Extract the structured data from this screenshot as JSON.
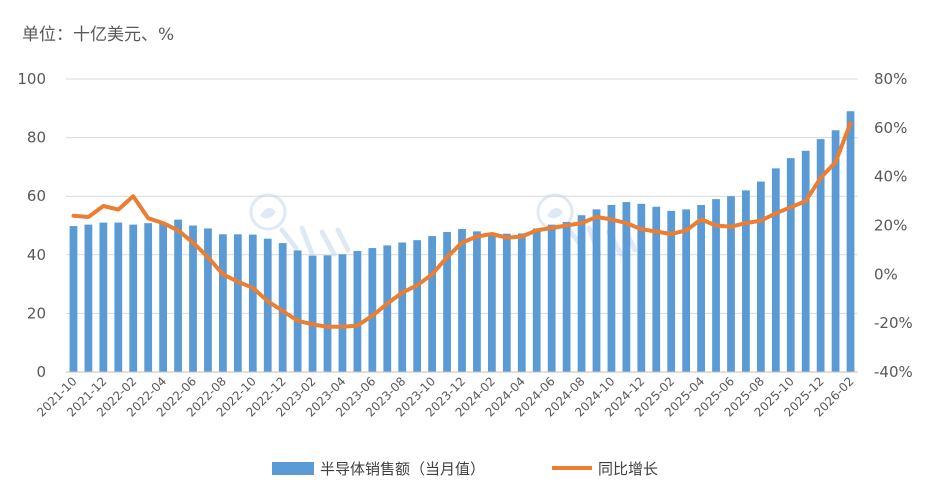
{
  "unit_label": "单位：十亿美元、%",
  "colors": {
    "bar": "#5b9bd5",
    "line": "#ed7d31",
    "grid": "#d9d9d9",
    "watermark": "#c5d8ee"
  },
  "watermark_icon": "stylized-logo-watermark",
  "chart_data": {
    "type": "bar",
    "categories": [
      "2021-10",
      "2021-11",
      "2021-12",
      "2022-01",
      "2022-02",
      "2022-03",
      "2022-04",
      "2022-05",
      "2022-06",
      "2022-07",
      "2022-08",
      "2022-09",
      "2022-10",
      "2022-11",
      "2022-12",
      "2023-01",
      "2023-02",
      "2023-03",
      "2023-04",
      "2023-05",
      "2023-06",
      "2023-07",
      "2023-08",
      "2023-09",
      "2023-10",
      "2023-11",
      "2023-12",
      "2024-01",
      "2024-02",
      "2024-03",
      "2024-04",
      "2024-05",
      "2024-06",
      "2024-07",
      "2024-08",
      "2024-09",
      "2024-10",
      "2024-11",
      "2024-12",
      "2025-01",
      "2025-02",
      "2025-03",
      "2025-04",
      "2025-05",
      "2025-06",
      "2025-07",
      "2025-08",
      "2025-09",
      "2025-10",
      "2025-11",
      "2025-12",
      "2026-01",
      "2026-02"
    ],
    "tick_labels": [
      "2021-10",
      "2021-12",
      "2022-02",
      "2022-04",
      "2022-06",
      "2022-08",
      "2022-10",
      "2022-12",
      "2023-02",
      "2023-04",
      "2023-06",
      "2023-08",
      "2023-10",
      "2023-12",
      "2024-02",
      "2024-04",
      "2024-06",
      "2024-08",
      "2024-10",
      "2024-12",
      "2025-02",
      "2025-04",
      "2025-06",
      "2025-08",
      "2025-10",
      "2025-12",
      "2026-02"
    ],
    "series": [
      {
        "name": "半导体销售额（当月值）",
        "type": "bar",
        "axis": "left",
        "values": [
          49.8,
          50.3,
          51.0,
          51.0,
          50.3,
          50.8,
          50.8,
          52.0,
          50.0,
          49.0,
          47.0,
          47.0,
          46.9,
          45.5,
          44.0,
          41.5,
          39.7,
          39.8,
          40.2,
          41.3,
          42.3,
          43.2,
          44.2,
          45.0,
          46.4,
          47.8,
          48.8,
          48.0,
          47.2,
          47.2,
          47.3,
          49.0,
          50.3,
          51.2,
          53.5,
          55.5,
          57.0,
          58.0,
          57.4,
          56.4,
          55.0,
          55.5,
          57.0,
          59.0,
          60.0,
          62.0,
          65.0,
          69.5,
          73.0,
          75.5,
          79.5,
          82.5,
          89.0
        ]
      },
      {
        "name": "同比增长",
        "type": "line",
        "axis": "right",
        "values": [
          24.0,
          23.5,
          28.0,
          26.5,
          32.0,
          23.0,
          21.0,
          18.0,
          13.0,
          7.0,
          0.0,
          -3.0,
          -5.5,
          -11.0,
          -15.0,
          -19.0,
          -20.5,
          -21.5,
          -21.5,
          -21.0,
          -17.0,
          -12.0,
          -7.5,
          -4.5,
          0.0,
          7.0,
          13.0,
          15.5,
          16.5,
          15.0,
          15.5,
          18.0,
          19.0,
          20.0,
          21.0,
          23.5,
          22.5,
          21.0,
          18.5,
          17.5,
          16.5,
          18.0,
          22.5,
          20.0,
          19.5,
          21.0,
          22.0,
          25.0,
          27.5,
          30.0,
          39.5,
          46.0,
          62.0
        ]
      }
    ],
    "y_left": {
      "range": [
        0,
        100
      ],
      "ticks": [
        "0",
        "20",
        "40",
        "60",
        "80",
        "100"
      ]
    },
    "y_right": {
      "range": [
        -40,
        80
      ],
      "ticks": [
        "-40%",
        "-20%",
        "0%",
        "20%",
        "40%",
        "60%",
        "80%"
      ]
    },
    "grid": true,
    "legend_position": "bottom"
  },
  "legend": {
    "bar_label": "半导体销售额（当月值）",
    "line_label": "同比增长"
  }
}
